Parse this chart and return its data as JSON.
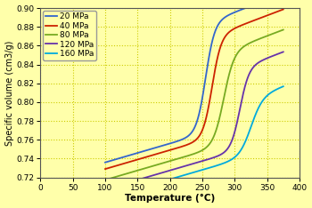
{
  "xlabel": "Temperature (°C)",
  "ylabel": "Specific volume (cm3/g)",
  "xlim": [
    0,
    400
  ],
  "ylim": [
    0.72,
    0.9
  ],
  "xticks": [
    0,
    50,
    100,
    150,
    200,
    250,
    300,
    350,
    400
  ],
  "yticks": [
    0.72,
    0.74,
    0.76,
    0.78,
    0.8,
    0.82,
    0.84,
    0.86,
    0.88,
    0.9
  ],
  "background_color": "#FFFFAA",
  "grid_color": "#CCCC00",
  "curves": [
    {
      "label": "20 MPa",
      "color": "#3366CC",
      "T_mid": 255,
      "v_low": 0.767,
      "v_high": 0.884,
      "sharpness": 7.0
    },
    {
      "label": "40 MPa",
      "color": "#CC2200",
      "T_mid": 265,
      "v_low": 0.762,
      "v_high": 0.87,
      "sharpness": 7.0
    },
    {
      "label": "80 MPa",
      "color": "#77AA22",
      "T_mid": 283,
      "v_low": 0.754,
      "v_high": 0.853,
      "sharpness": 8.0
    },
    {
      "label": "120 MPa",
      "color": "#6633AA",
      "T_mid": 308,
      "v_low": 0.749,
      "v_high": 0.836,
      "sharpness": 7.0
    },
    {
      "label": "160 MPa",
      "color": "#00AADD",
      "T_mid": 325,
      "v_low": 0.743,
      "v_high": 0.804,
      "sharpness": 9.0
    }
  ]
}
